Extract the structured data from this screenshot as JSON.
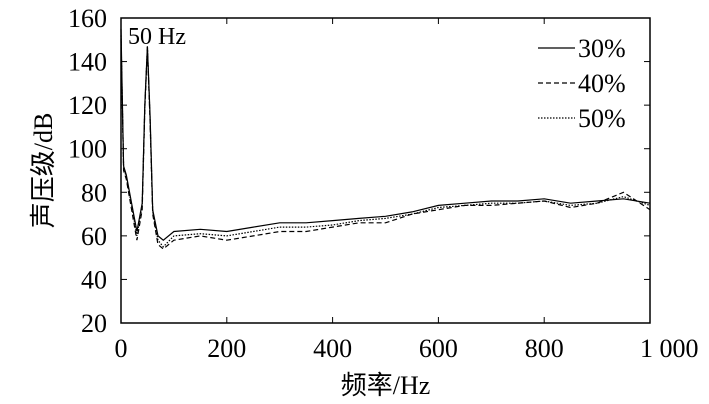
{
  "chart_data": {
    "type": "line",
    "xlabel": "频率/Hz",
    "ylabel": "声压级/dB",
    "xlim": [
      0,
      1000
    ],
    "ylim": [
      20,
      160
    ],
    "x_ticks": [
      0,
      200,
      400,
      600,
      800,
      1000
    ],
    "x_tick_labels": [
      "0",
      "200",
      "400",
      "600",
      "800",
      "1 000"
    ],
    "y_ticks": [
      20,
      40,
      60,
      80,
      100,
      120,
      140,
      160
    ],
    "y_tick_labels": [
      "20",
      "40",
      "60",
      "80",
      "100",
      "120",
      "140",
      "160"
    ],
    "grid": false,
    "legend_position": "top-right",
    "annotations": [
      {
        "text": "50 Hz",
        "x": 50,
        "y": 148
      }
    ],
    "x": [
      0,
      5,
      10,
      20,
      30,
      40,
      45,
      50,
      55,
      60,
      70,
      80,
      100,
      150,
      200,
      250,
      300,
      350,
      400,
      450,
      500,
      550,
      600,
      650,
      700,
      750,
      800,
      850,
      900,
      950,
      1000
    ],
    "series": [
      {
        "name": "30%",
        "style": "solid",
        "values": [
          155,
          92,
          88,
          75,
          62,
          75,
          120,
          147,
          115,
          72,
          60,
          58,
          62,
          63,
          62,
          64,
          66,
          66,
          67,
          68,
          69,
          71,
          74,
          75,
          76,
          76,
          77,
          75,
          76,
          77,
          75
        ]
      },
      {
        "name": "40%",
        "style": "dashed",
        "values": [
          150,
          90,
          86,
          72,
          58,
          72,
          118,
          146,
          112,
          70,
          56,
          54,
          58,
          60,
          58,
          60,
          62,
          62,
          64,
          66,
          66,
          70,
          72,
          74,
          74,
          75,
          76,
          73,
          75,
          80,
          72
        ]
      },
      {
        "name": "50%",
        "style": "dotted",
        "values": [
          152,
          91,
          87,
          74,
          60,
          74,
          119,
          147,
          113,
          71,
          58,
          55,
          60,
          61,
          60,
          62,
          64,
          64,
          65,
          67,
          68,
          70,
          73,
          74,
          75,
          75,
          76,
          74,
          75,
          78,
          74
        ]
      }
    ]
  }
}
